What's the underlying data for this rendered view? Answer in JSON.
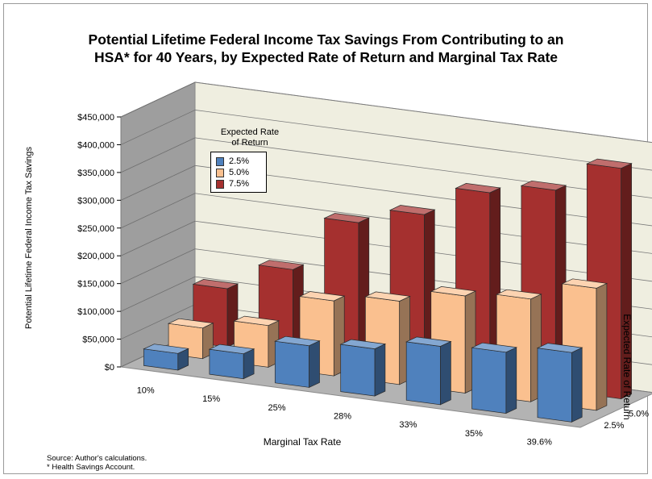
{
  "chart_data": {
    "type": "bar",
    "title_lines": [
      "Potential Lifetime Federal Income Tax Savings From Contributing to an",
      "HSA* for 40 Years, by Expected Rate of Return and Marginal Tax Rate"
    ],
    "xlabel": "Marginal Tax Rate",
    "ylabel": "Potential Lifetime Federal Income Tax Savings",
    "zlabel": "Expected Rate of Return",
    "categories": [
      "10%",
      "15%",
      "25%",
      "28%",
      "33%",
      "35%",
      "39.6%"
    ],
    "series": [
      {
        "name": "2.5%",
        "color": "#4f81bd",
        "values": [
          30000,
          45000,
          75000,
          85000,
          105000,
          110000,
          125000
        ]
      },
      {
        "name": "5.0%",
        "color": "#fac08f",
        "values": [
          55000,
          75000,
          135000,
          150000,
          175000,
          185000,
          220000
        ]
      },
      {
        "name": "7.5%",
        "color": "#a5302f",
        "values": [
          105000,
          155000,
          255000,
          285000,
          340000,
          360000,
          415000
        ]
      }
    ],
    "y_ticks": [
      "$0",
      "$50,000",
      "$100,000",
      "$150,000",
      "$200,000",
      "$250,000",
      "$300,000",
      "$350,000",
      "$400,000",
      "$450,000"
    ],
    "z_ticks": [
      "2.5%",
      "5.0%",
      "7.5%"
    ],
    "ylim": [
      0,
      450000
    ],
    "legend": {
      "title_lines": [
        "Expected Rate",
        "of Return"
      ],
      "position": "upper-left inside plot"
    },
    "grid": true
  },
  "footnotes": [
    "Source: Author's calculations.",
    "* Health Savings Account."
  ]
}
